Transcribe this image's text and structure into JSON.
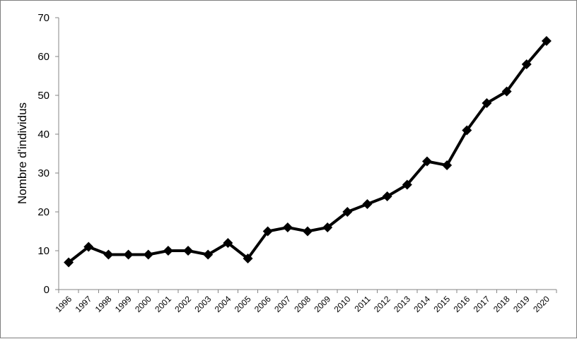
{
  "chart_data": {
    "type": "line",
    "title": "",
    "xlabel": "",
    "ylabel": "Nombre d'individus",
    "ylim": [
      0,
      70
    ],
    "yticks": [
      0,
      10,
      20,
      30,
      40,
      50,
      60,
      70
    ],
    "grid": false,
    "legend": "none",
    "categories": [
      "1996",
      "1997",
      "1998",
      "1999",
      "2000",
      "2001",
      "2002",
      "2003",
      "2004",
      "2005",
      "2006",
      "2007",
      "2008",
      "2009",
      "2010",
      "2011",
      "2012",
      "2013",
      "2014",
      "2015",
      "2016",
      "2017",
      "2018",
      "2019",
      "2020"
    ],
    "series": [
      {
        "color": "#000000",
        "marker": "diamond",
        "values": [
          7,
          11,
          9,
          9,
          9,
          10,
          10,
          9,
          12,
          8,
          15,
          16,
          15,
          16,
          20,
          22,
          24,
          27,
          33,
          32,
          41,
          48,
          51,
          58,
          64
        ]
      }
    ]
  }
}
